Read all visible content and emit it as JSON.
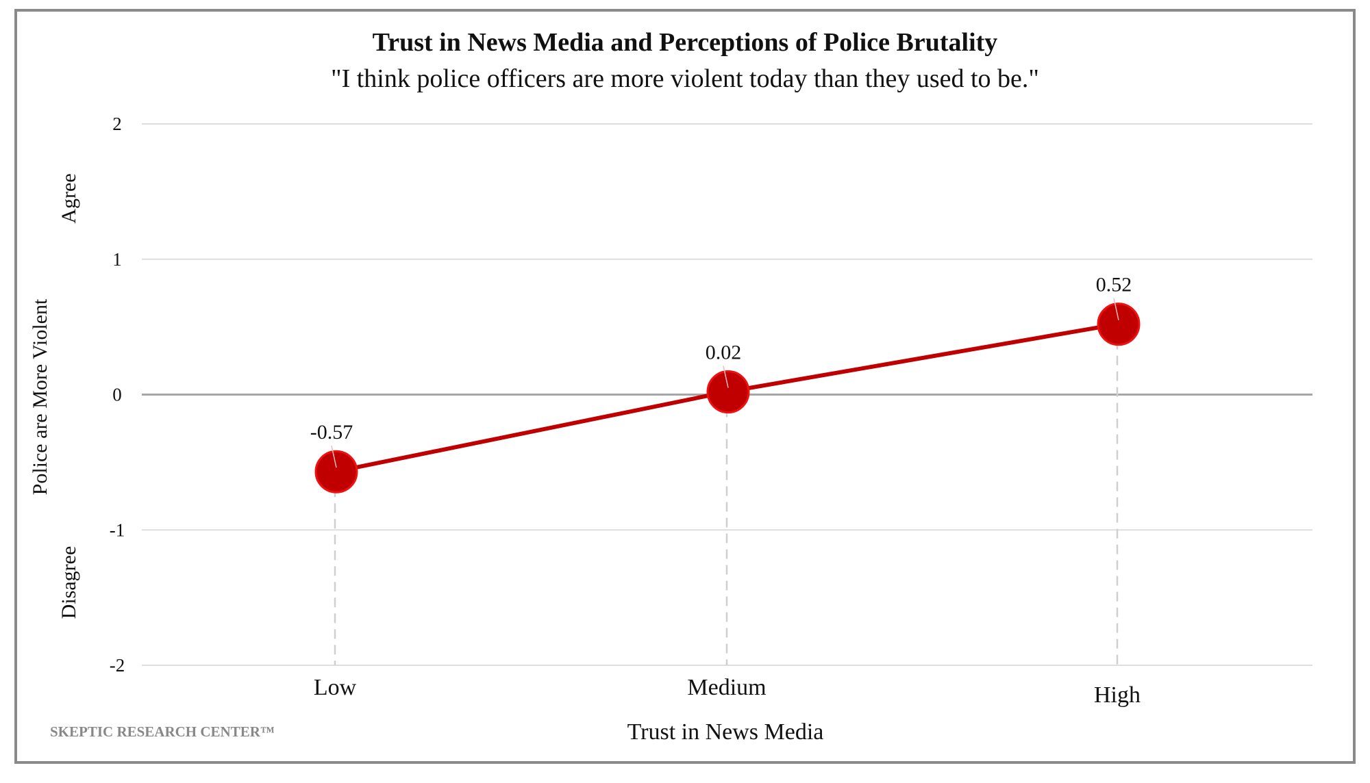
{
  "chart_data": {
    "type": "line",
    "title": "Trust in News Media and Perceptions of Police Brutality",
    "subtitle": "\"I think police officers are more violent today than they used to be.\"",
    "xlabel": "Trust in News Media",
    "ylabel": "Police are More Violent",
    "ylabel_top": "Agree",
    "ylabel_bottom": "Disagree",
    "categories": [
      "Low",
      "Medium",
      "High"
    ],
    "values": [
      -0.57,
      0.02,
      0.52
    ],
    "data_labels": [
      "-0.57",
      "0.02",
      "0.52"
    ],
    "ylim": [
      -2,
      2
    ],
    "yticks": [
      2,
      1,
      0,
      -1,
      -2
    ],
    "ytick_labels": [
      "2",
      "1",
      "0",
      "-1",
      "-2"
    ],
    "grid": true,
    "line_color": "#c00000",
    "marker_color": "#c00000"
  },
  "watermark": "SKEPTIC RESEARCH CENTER™"
}
